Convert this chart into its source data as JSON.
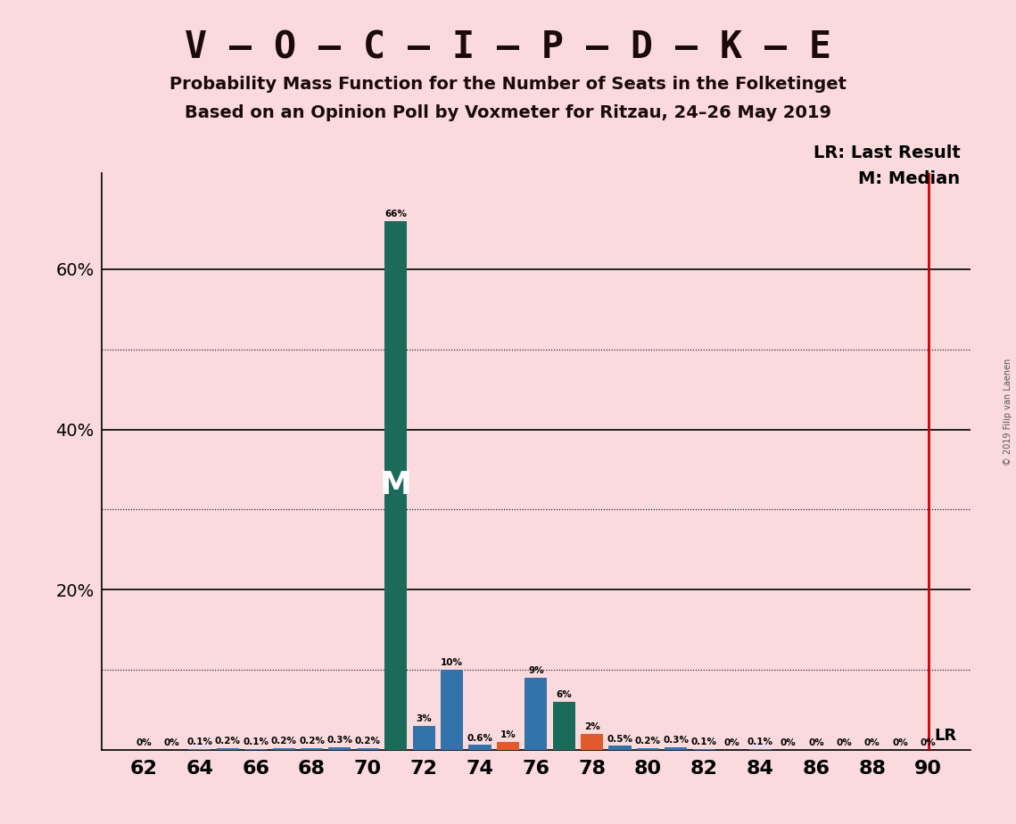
{
  "title1": "V – O – C – I – P – D – K – E",
  "title2": "Probability Mass Function for the Number of Seats in the Folketinget",
  "title3": "Based on an Opinion Poll by Voxmeter for Ritzau, 24–26 May 2019",
  "copyright": "© 2019 Filip van Laenen",
  "legend1": "LR: Last Result",
  "legend2": "M: Median",
  "lr_label": "LR",
  "median_label": "M",
  "lr_x": 90,
  "median_x": 71,
  "background_color": "#FADADD",
  "seats": [
    62,
    63,
    64,
    65,
    66,
    67,
    68,
    69,
    70,
    71,
    72,
    73,
    74,
    75,
    76,
    77,
    78,
    79,
    80,
    81,
    82,
    83,
    84,
    85,
    86,
    87,
    88,
    89,
    90
  ],
  "probabilities": [
    0.0,
    0.0,
    0.1,
    0.2,
    0.1,
    0.2,
    0.2,
    0.3,
    0.2,
    66.0,
    3.0,
    10.0,
    0.6,
    1.0,
    9.0,
    6.0,
    2.0,
    0.5,
    0.2,
    0.3,
    0.1,
    0.0,
    0.1,
    0.0,
    0.0,
    0.0,
    0.0,
    0.0,
    0.0
  ],
  "bar_colors": [
    "#3472AC",
    "#3472AC",
    "#3472AC",
    "#3472AC",
    "#3472AC",
    "#3472AC",
    "#3472AC",
    "#3472AC",
    "#3472AC",
    "#1B6B5A",
    "#3472AC",
    "#3472AC",
    "#3472AC",
    "#E05A2B",
    "#3472AC",
    "#1B6B5A",
    "#E05A2B",
    "#3472AC",
    "#3472AC",
    "#3472AC",
    "#3472AC",
    "#3472AC",
    "#3472AC",
    "#3472AC",
    "#3472AC",
    "#3472AC",
    "#3472AC",
    "#3472AC",
    "#3472AC"
  ],
  "yticks": [
    20,
    40,
    60
  ],
  "ylim": [
    0,
    72
  ],
  "xlim": [
    60.5,
    91.5
  ],
  "bar_width": 0.8,
  "lr_color": "#CC0000",
  "median_color": "#FFFFFF",
  "text_color": "#1a0a0a",
  "grid_solid": [
    20,
    40,
    60
  ],
  "grid_dotted": [
    10,
    30,
    50
  ],
  "title1_fontsize": 30,
  "title2_fontsize": 14,
  "title3_fontsize": 14,
  "legend_fontsize": 14,
  "ytick_fontsize": 14,
  "xtick_fontsize": 16
}
